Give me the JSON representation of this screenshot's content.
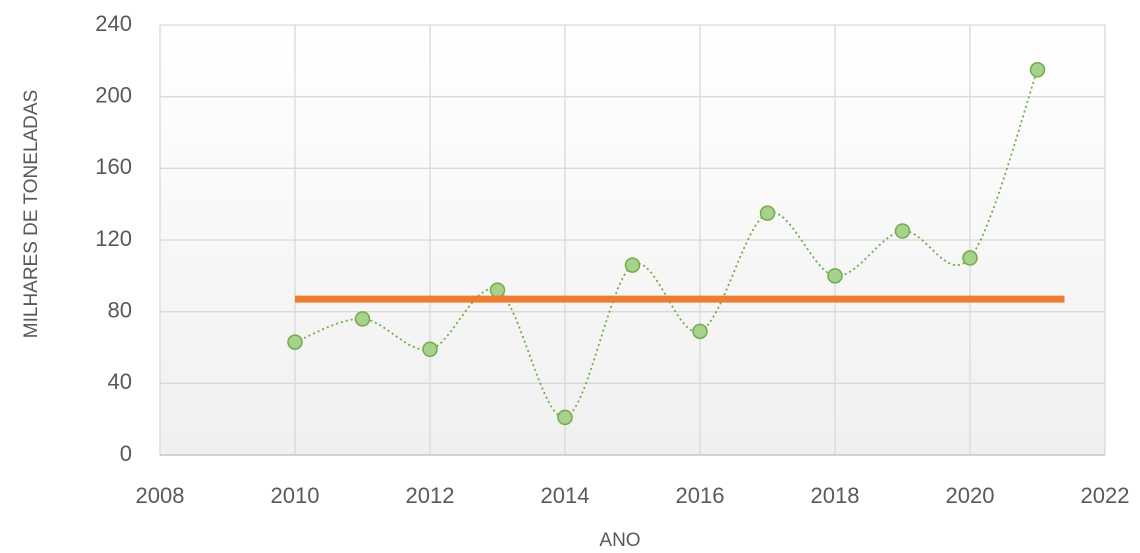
{
  "chart_data": {
    "type": "scatter",
    "x_label": "ANO",
    "y_label": "MILHARES DE TONELADAS",
    "series": [
      {
        "color": "#70ad47",
        "smooth": true,
        "x": [
          2010,
          2011,
          2012,
          2013,
          2014,
          2015,
          2016,
          2017,
          2018,
          2019,
          2020,
          2021
        ],
        "values": [
          63,
          76,
          59,
          92,
          21,
          106,
          69,
          135,
          100,
          125,
          110,
          215
        ]
      },
      {
        "color": "#ed7d31",
        "line_only": true,
        "x": [
          2010,
          2021.4
        ],
        "values": [
          87,
          87
        ]
      }
    ],
    "xlim": [
      2008,
      2022
    ],
    "xticks": [
      2008,
      2010,
      2012,
      2014,
      2016,
      2018,
      2020,
      2022
    ],
    "ylim": [
      0,
      240
    ],
    "yticks": [
      0,
      40,
      80,
      120,
      160,
      200,
      240
    ],
    "grid": true
  }
}
